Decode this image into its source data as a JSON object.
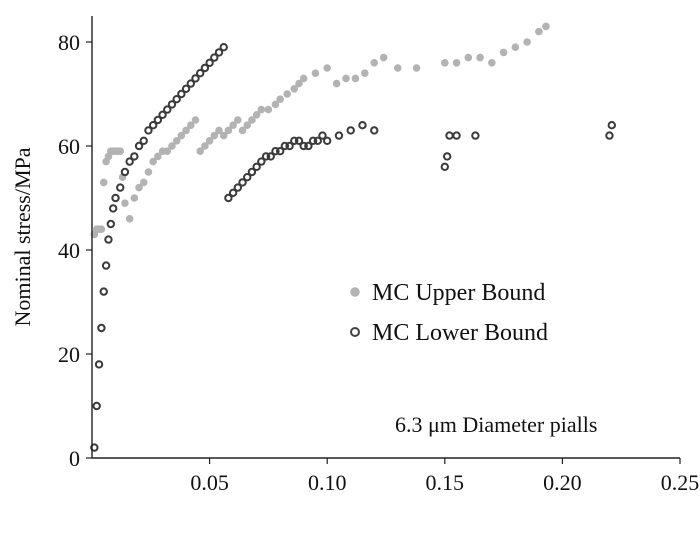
{
  "chart_data": {
    "type": "scatter",
    "title": "",
    "xlabel": "",
    "ylabel": "Nominal stress/MPa",
    "xlim": [
      0,
      0.25
    ],
    "ylim": [
      0,
      85
    ],
    "x_ticks": [
      {
        "value": 0.05,
        "label": "0.05"
      },
      {
        "value": 0.1,
        "label": "0.10"
      },
      {
        "value": 0.15,
        "label": "0.15"
      },
      {
        "value": 0.2,
        "label": "0.20"
      },
      {
        "value": 0.25,
        "label": "0.25"
      }
    ],
    "y_ticks": [
      {
        "value": 0,
        "label": "0"
      },
      {
        "value": 20,
        "label": "20"
      },
      {
        "value": 40,
        "label": "40"
      },
      {
        "value": 60,
        "label": "60"
      },
      {
        "value": 80,
        "label": "80"
      }
    ],
    "grid": false,
    "legend_position": "right",
    "annotation": "6.3 μm Diameter pialls",
    "colors": {
      "upper": "#b3b3b3",
      "lower": "#3a3a3a",
      "dense": "#111111",
      "axis": "#222222"
    },
    "series": [
      {
        "name": "MC Upper Bound",
        "color": "#b3b3b3",
        "x": [
          0.001,
          0.002,
          0.003,
          0.004,
          0.005,
          0.006,
          0.007,
          0.008,
          0.009,
          0.01,
          0.011,
          0.012,
          0.013,
          0.014,
          0.016,
          0.018,
          0.02,
          0.022,
          0.024,
          0.026,
          0.028,
          0.03,
          0.032,
          0.034,
          0.036,
          0.038,
          0.04,
          0.042,
          0.044,
          0.046,
          0.048,
          0.05,
          0.052,
          0.054,
          0.056,
          0.058,
          0.06,
          0.062,
          0.064,
          0.066,
          0.068,
          0.07,
          0.072,
          0.075,
          0.078,
          0.08,
          0.083,
          0.086,
          0.088,
          0.09,
          0.095,
          0.1,
          0.104,
          0.108,
          0.112,
          0.116,
          0.12,
          0.124,
          0.13,
          0.138,
          0.15,
          0.155,
          0.16,
          0.165,
          0.17,
          0.175,
          0.18,
          0.185,
          0.19,
          0.193
        ],
        "y": [
          43,
          44,
          44,
          44,
          53,
          57,
          58,
          59,
          59,
          59,
          59,
          59,
          54,
          49,
          46,
          50,
          52,
          53,
          55,
          57,
          58,
          59,
          59,
          60,
          61,
          62,
          63,
          64,
          65,
          59,
          60,
          61,
          62,
          63,
          62,
          63,
          64,
          65,
          63,
          64,
          65,
          66,
          67,
          67,
          68,
          69,
          70,
          71,
          72,
          73,
          74,
          75,
          72,
          73,
          73,
          74,
          76,
          77,
          75,
          75,
          76,
          76,
          77,
          77,
          76,
          78,
          79,
          80,
          82,
          83
        ]
      },
      {
        "name": "MC Lower Bound",
        "color": "#3a3a3a",
        "x": [
          0.001,
          0.002,
          0.003,
          0.004,
          0.005,
          0.006,
          0.007,
          0.008,
          0.009,
          0.01,
          0.012,
          0.014,
          0.016,
          0.018,
          0.02,
          0.022,
          0.024,
          0.026,
          0.028,
          0.03,
          0.032,
          0.034,
          0.036,
          0.038,
          0.04,
          0.042,
          0.044,
          0.046,
          0.048,
          0.05,
          0.052,
          0.054,
          0.056,
          0.058,
          0.06,
          0.062,
          0.064,
          0.066,
          0.068,
          0.07,
          0.072,
          0.074,
          0.076,
          0.078,
          0.08,
          0.082,
          0.084,
          0.086,
          0.088,
          0.09,
          0.092,
          0.094,
          0.096,
          0.098,
          0.1,
          0.105,
          0.11,
          0.115,
          0.12,
          0.15,
          0.151,
          0.152,
          0.155,
          0.163,
          0.22,
          0.221
        ],
        "y": [
          2,
          10,
          18,
          25,
          32,
          37,
          42,
          45,
          48,
          50,
          52,
          55,
          57,
          58,
          60,
          61,
          63,
          64,
          65,
          66,
          67,
          68,
          69,
          70,
          71,
          72,
          73,
          74,
          75,
          76,
          77,
          78,
          79,
          50,
          51,
          52,
          53,
          54,
          55,
          56,
          57,
          58,
          58,
          59,
          59,
          60,
          60,
          61,
          61,
          60,
          60,
          61,
          61,
          62,
          61,
          62,
          63,
          64,
          63,
          56,
          58,
          62,
          62,
          62,
          62,
          64
        ]
      }
    ]
  }
}
